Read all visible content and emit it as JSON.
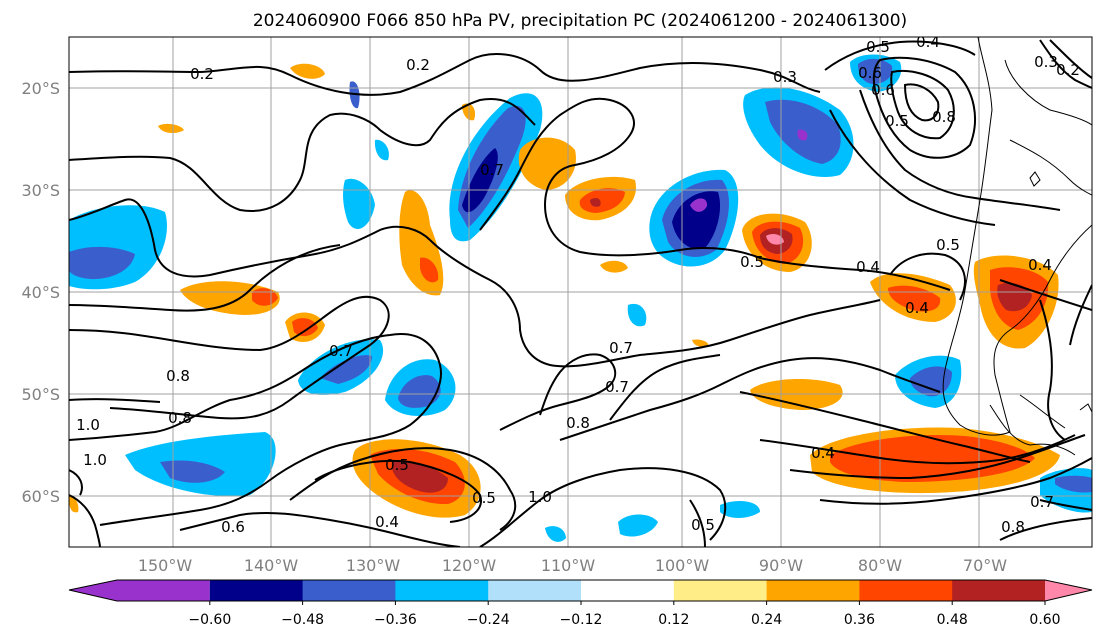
{
  "title": "2024060900 F066 850 hPa PV, precipitation PC (2024061200 - 2024061300)",
  "map": {
    "region": "Southeast Pacific / southern South America",
    "lat_ticks": [
      "20°S",
      "30°S",
      "40°S",
      "50°S",
      "60°S"
    ],
    "lon_ticks": [
      "150°W",
      "140°W",
      "130°W",
      "120°W",
      "110°W",
      "100°W",
      "90°W",
      "80°W",
      "70°W"
    ],
    "gridlines": true,
    "contour_field": "850 hPa PV",
    "contour_labels": [
      "0.2",
      "0.2",
      "0.3",
      "0.3",
      "0.2",
      "0.4",
      "0.5",
      "0.6",
      "0.6",
      "0.8",
      "0.5",
      "0.5",
      "0.4",
      "0.4",
      "0.4",
      "0.5",
      "0.7",
      "0.7",
      "0.7",
      "0.7",
      "0.8",
      "0.8",
      "1.0",
      "1.0",
      "1.0",
      "0.6",
      "0.8",
      "0.5",
      "0.5",
      "0.4",
      "0.4",
      "0.5",
      "0.7",
      "0.8"
    ],
    "shaded_field": "precipitation PC"
  },
  "colorbar": {
    "tick_labels": [
      "−0.60",
      "−0.48",
      "−0.36",
      "−0.24",
      "−0.12",
      "0.12",
      "0.24",
      "0.36",
      "0.48",
      "0.60"
    ],
    "colors": [
      "#9932cc",
      "#00008b",
      "#3a5fcd",
      "#00bfff",
      "#b0e0fa",
      "#ffffff",
      "#ffee88",
      "#ffa500",
      "#ff4500",
      "#b22222",
      "#ff88aa"
    ],
    "extend": "both"
  }
}
